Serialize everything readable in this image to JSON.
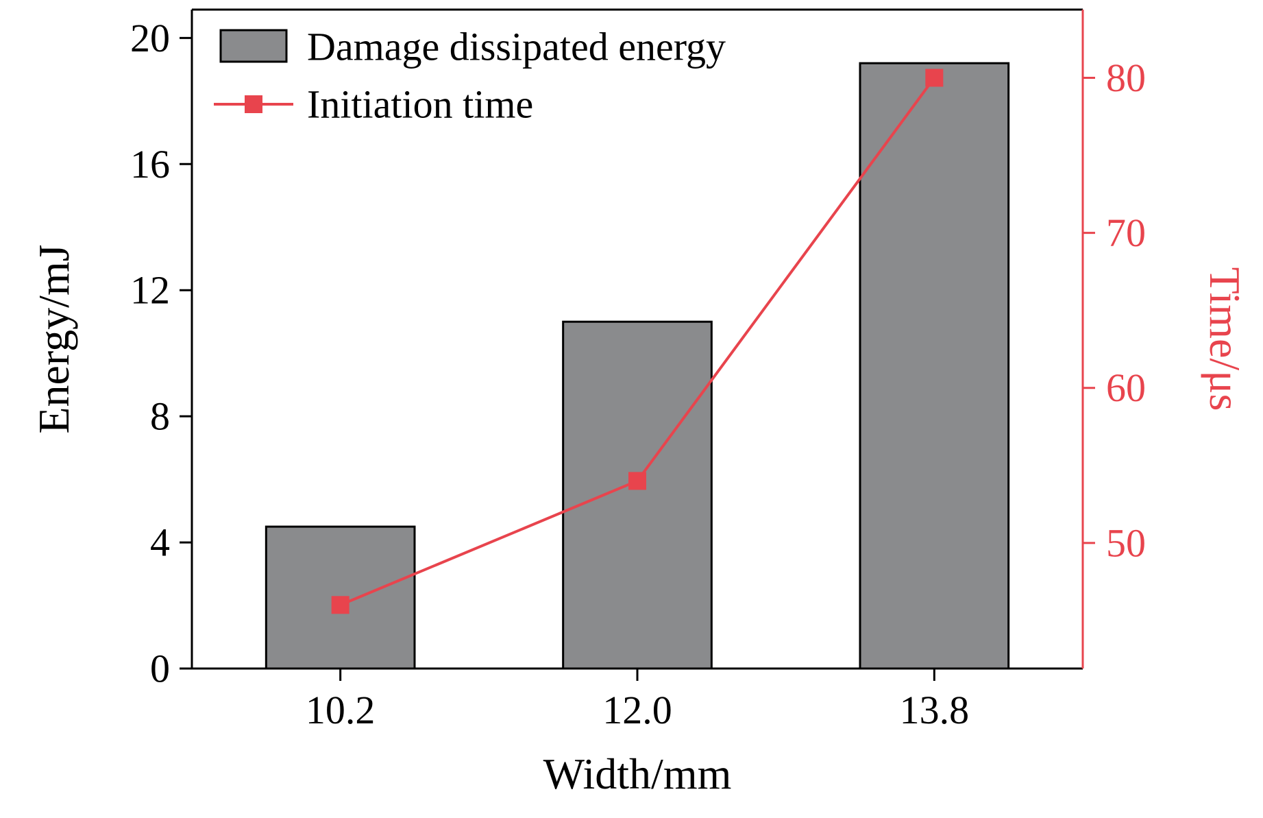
{
  "chart_data": {
    "type": "bar",
    "categories": [
      "10.2",
      "12.0",
      "13.8"
    ],
    "xlabel": "Width/mm",
    "left_axis": {
      "label": "Energy/mJ",
      "ticks": [
        0,
        4,
        8,
        12,
        16,
        20
      ],
      "range": [
        0,
        20.9
      ],
      "color": "#000000"
    },
    "right_axis": {
      "label": "Time/μs",
      "ticks": [
        50,
        60,
        70,
        80
      ],
      "range": [
        41.9,
        84.4
      ],
      "color": "#e8444d"
    },
    "series": [
      {
        "name": "Damage dissipated energy",
        "type": "bar",
        "axis": "left",
        "values": [
          4.5,
          11.0,
          19.2
        ],
        "fill": "#8a8b8d",
        "stroke": "#000000"
      },
      {
        "name": "Initiation time",
        "type": "line",
        "axis": "right",
        "values": [
          46,
          54,
          80
        ],
        "color": "#e8444d",
        "marker": "square"
      }
    ],
    "legend": {
      "position": "top-left",
      "entries": [
        "Damage dissipated energy",
        "Initiation time"
      ]
    },
    "grid": false
  }
}
